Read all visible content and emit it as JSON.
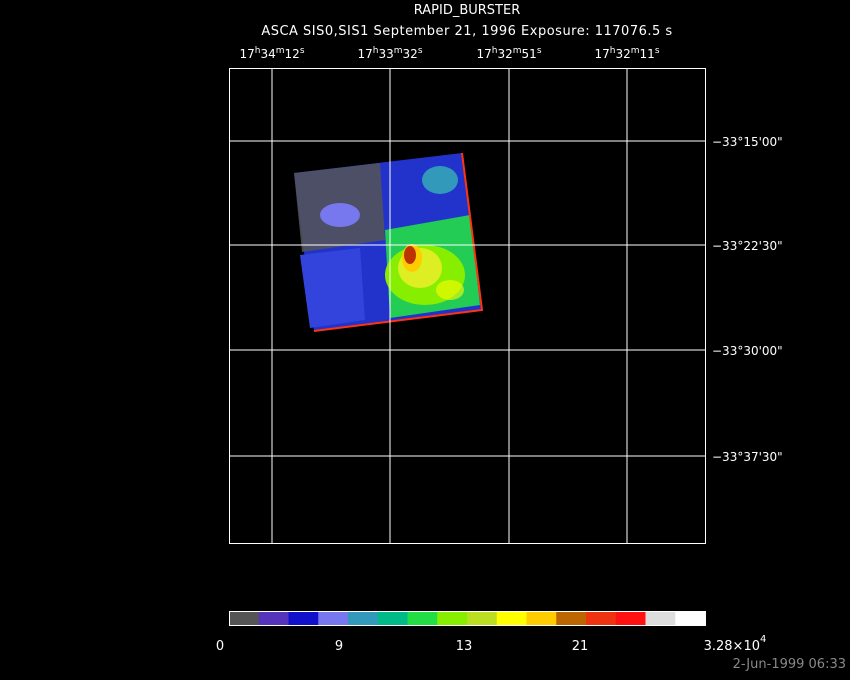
{
  "header": {
    "title": "RAPID_BURSTER",
    "subtitle": "ASCA SIS0,SIS1 September 21, 1996 Exposure: 117076.5 s"
  },
  "ra_labels": [
    [
      "17",
      "h",
      "34",
      "m",
      "12",
      "s"
    ],
    [
      "17",
      "h",
      "33",
      "m",
      "32",
      "s"
    ],
    [
      "17",
      "h",
      "32",
      "m",
      "51",
      "s"
    ],
    [
      "17",
      "h",
      "32",
      "m",
      "11",
      "s"
    ]
  ],
  "dec_labels": [
    "−33°15'00\"",
    "−33°22'30\"",
    "−33°30'00\"",
    "−33°37'30\""
  ],
  "colorbar": {
    "colors": [
      "#555555",
      "#5533bb",
      "#1111cc",
      "#7777ee",
      "#3399bb",
      "#00bb88",
      "#22dd44",
      "#88ee00",
      "#bbdd22",
      "#ffff00",
      "#ffcc00",
      "#bb6600",
      "#ee3311",
      "#ff1111",
      "#dddddd",
      "#ffffff"
    ],
    "labels": [
      "0",
      "9",
      "13",
      "21"
    ],
    "max_label": [
      "3.28×10",
      "4"
    ]
  },
  "timestamp": "2-Jun-1999 06:33"
}
